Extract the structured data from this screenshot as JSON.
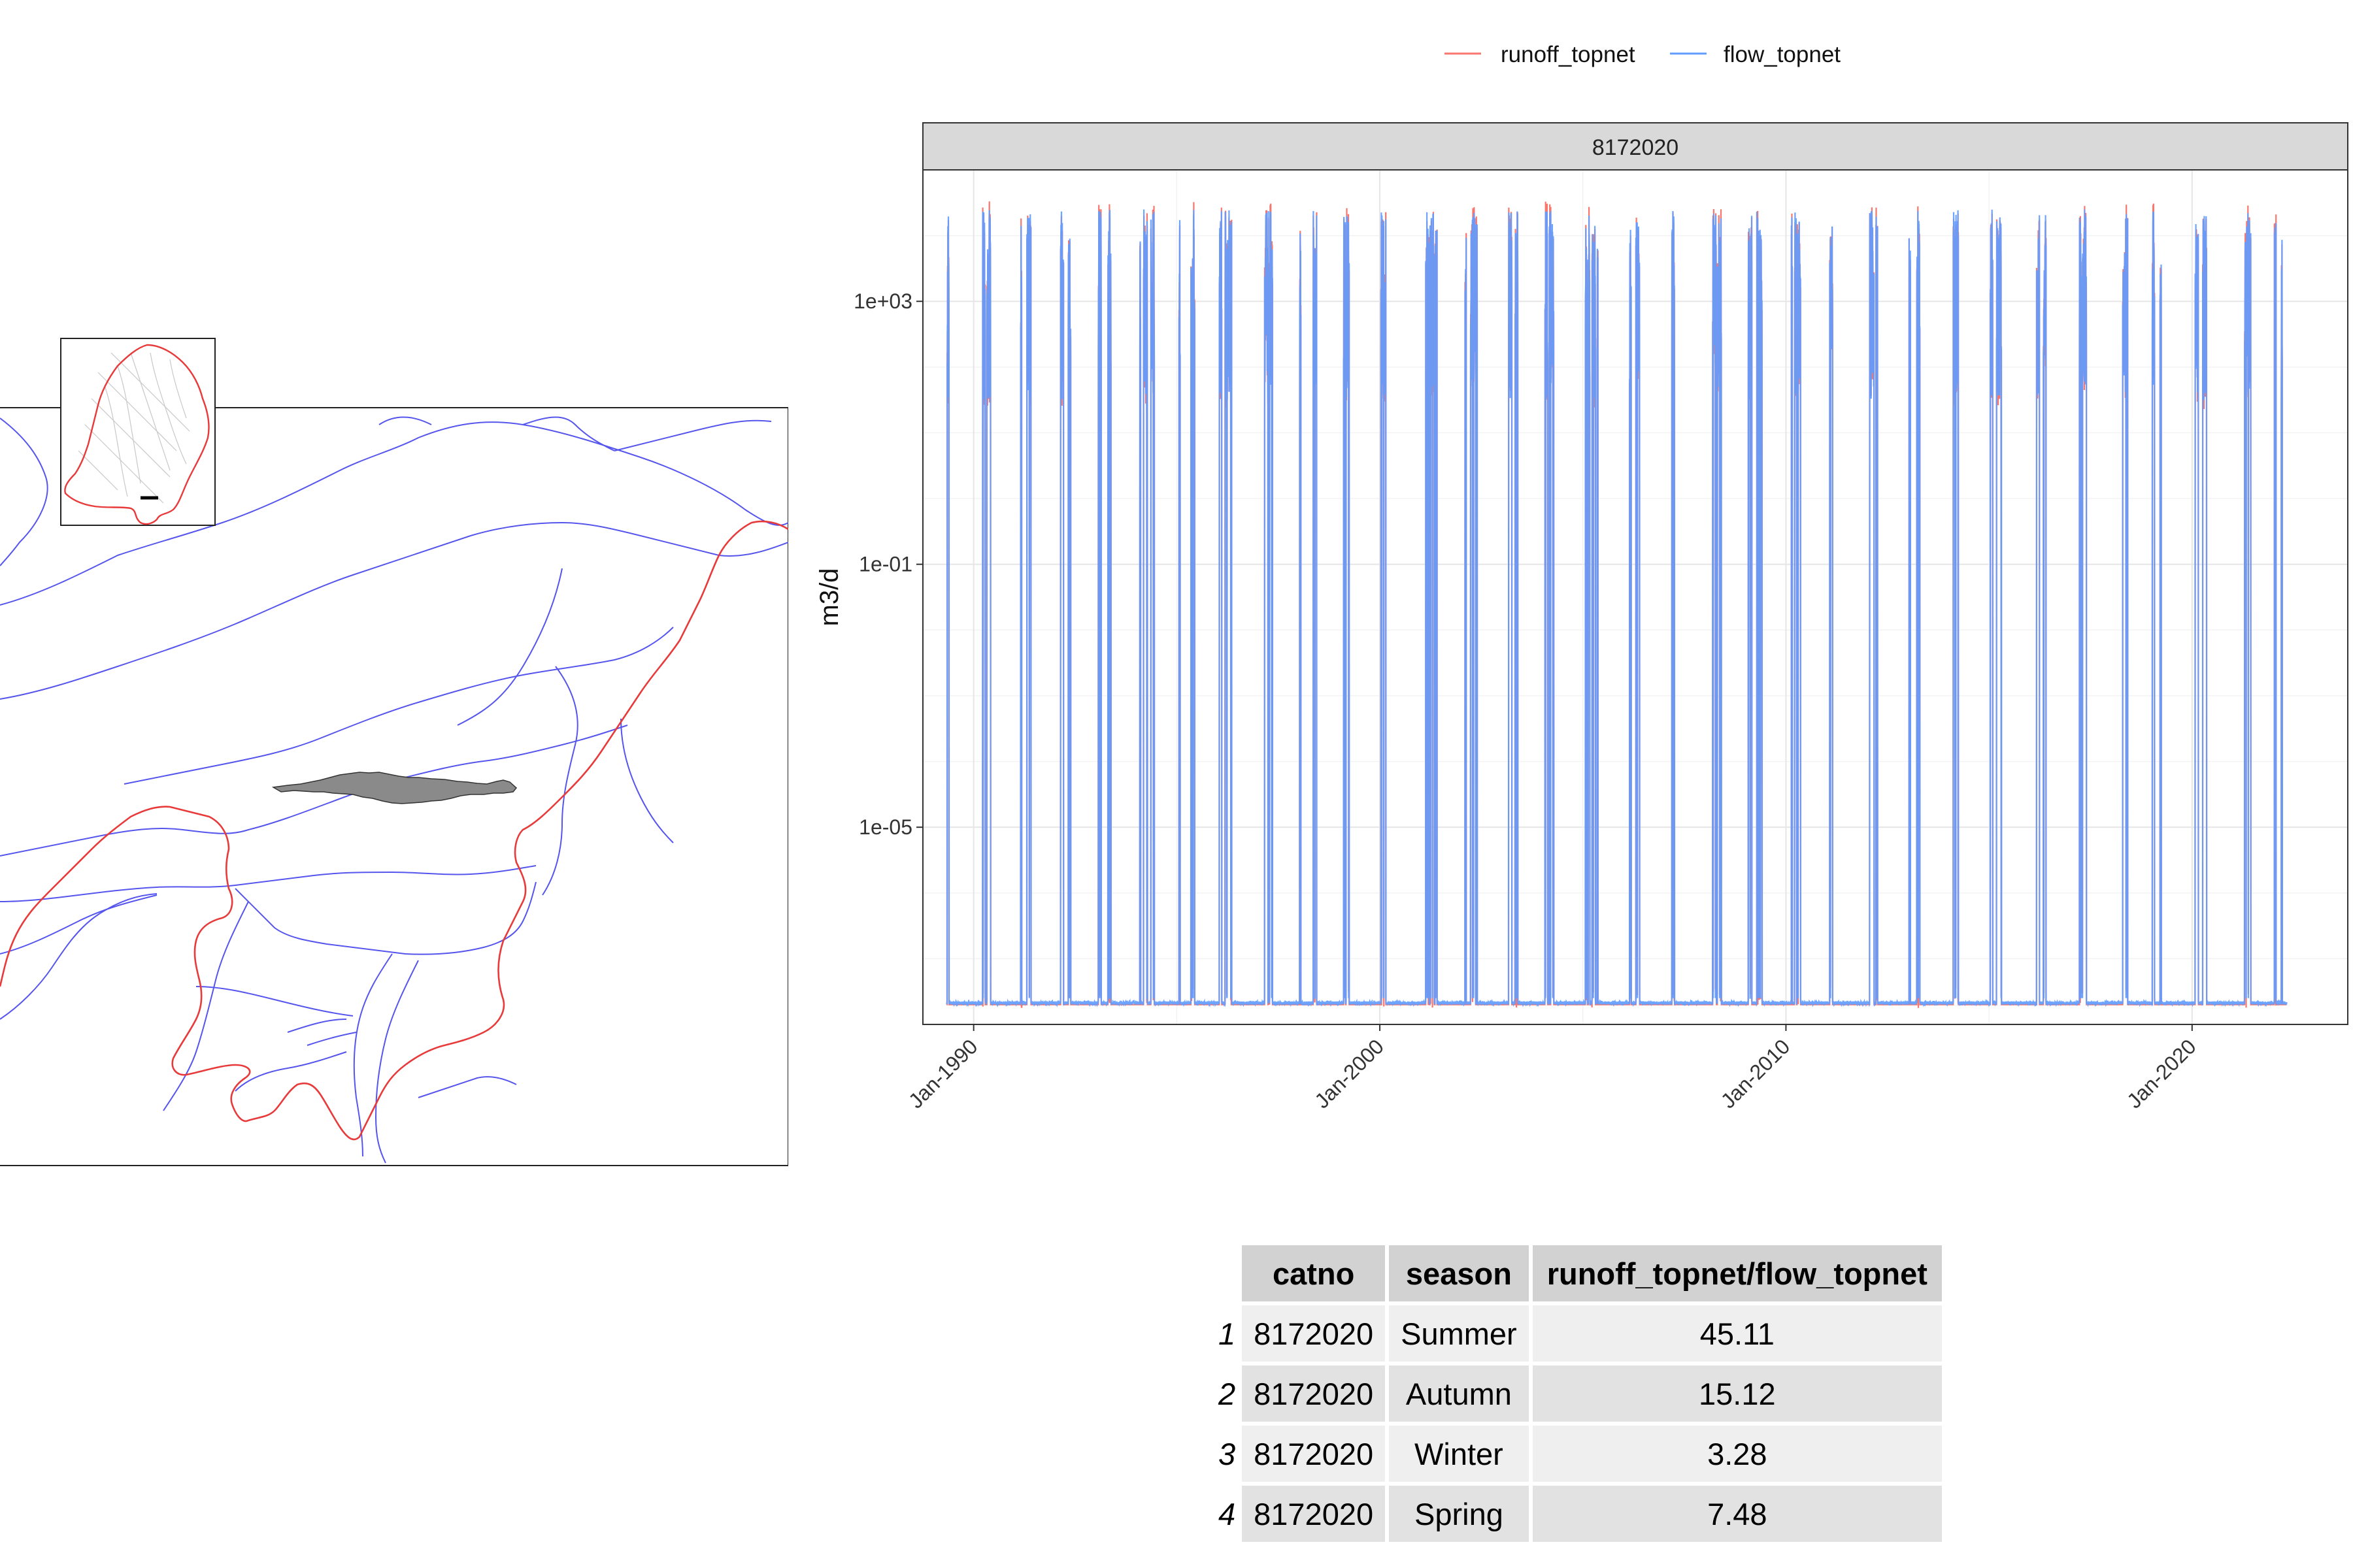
{
  "legend": {
    "items": [
      {
        "label": "runoff_topnet",
        "color": "#F8766D"
      },
      {
        "label": "flow_topnet",
        "color": "#619CFF"
      }
    ]
  },
  "chart_data": {
    "type": "line",
    "facet_label": "8172020",
    "ylabel": "m3/d",
    "y_scale": "log10",
    "ylim": [
      "1e-08",
      "1e+05"
    ],
    "y_ticks": [
      "1e+03",
      "1e-01",
      "1e-05"
    ],
    "x_ticks": [
      "Jan-1990",
      "Jan-2000",
      "Jan-2010",
      "Jan-2020"
    ],
    "xlim": [
      "1988-10",
      "2023-11"
    ],
    "grid": true,
    "legend_position": "top",
    "series": [
      {
        "name": "runoff_topnet",
        "color": "#F8766D"
      },
      {
        "name": "flow_topnet",
        "color": "#619CFF"
      }
    ],
    "baseline_value": "~2e-08",
    "peak_value": "~1e+04",
    "date_range": [
      "1989-05",
      "2022-05"
    ]
  },
  "map": {
    "colors": {
      "rivers": "#5555ee",
      "coast": "#e83a3a",
      "catchment": "#8a8a8a",
      "inset_lines": "#c8c8c8"
    }
  },
  "table": {
    "headers": [
      "catno",
      "season",
      "runoff_topnet/flow_topnet"
    ],
    "rows": [
      {
        "idx": "1",
        "catno": "8172020",
        "season": "Summer",
        "ratio": "45.11"
      },
      {
        "idx": "2",
        "catno": "8172020",
        "season": "Autumn",
        "ratio": "15.12"
      },
      {
        "idx": "3",
        "catno": "8172020",
        "season": "Winter",
        "ratio": "3.28"
      },
      {
        "idx": "4",
        "catno": "8172020",
        "season": "Spring",
        "ratio": "7.48"
      }
    ]
  }
}
